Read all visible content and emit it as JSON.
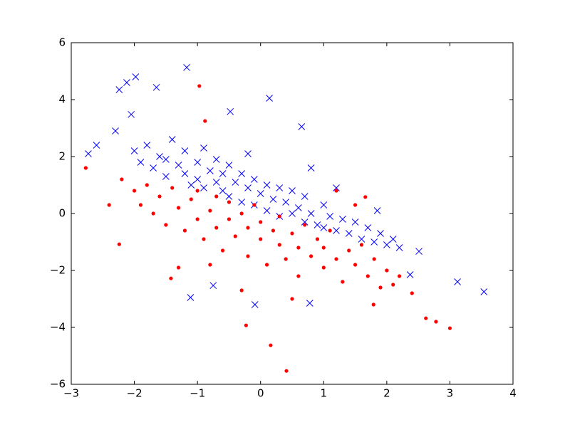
{
  "chart_data": {
    "type": "scatter",
    "xlim": [
      -3,
      4
    ],
    "ylim": [
      -6,
      6
    ],
    "xticks": [
      {
        "value": -3,
        "label": "−3"
      },
      {
        "value": -2,
        "label": "−2"
      },
      {
        "value": -1,
        "label": "−1"
      },
      0,
      1,
      2,
      3,
      4
    ],
    "yticks": [
      {
        "value": -6,
        "label": "−6"
      },
      {
        "value": -4,
        "label": "−4"
      },
      {
        "value": -2,
        "label": "−2"
      },
      0,
      2,
      4,
      6
    ],
    "series": [
      {
        "color": "#0000ff",
        "marker": "x",
        "x": [
          -2.0,
          -1.9,
          -1.8,
          -1.7,
          -1.6,
          -1.5,
          -1.5,
          -1.4,
          -1.3,
          -1.2,
          -1.2,
          -1.1,
          -1.0,
          -1.0,
          -0.9,
          -0.9,
          -0.8,
          -0.7,
          -0.7,
          -0.6,
          -0.6,
          -0.5,
          -0.5,
          -0.4,
          -0.3,
          -0.3,
          -0.2,
          -0.1,
          -0.1,
          0.0,
          0.1,
          0.1,
          0.2,
          0.3,
          0.3,
          0.4,
          0.5,
          0.5,
          0.6,
          0.7,
          0.7,
          0.8,
          0.9,
          1.0,
          1.0,
          1.1,
          1.2,
          1.3,
          1.4,
          1.5,
          1.6,
          1.7,
          1.8,
          1.9,
          2.0,
          2.1,
          2.2,
          0.8,
          1.2,
          -0.2,
          -2.24,
          -1.98,
          -2.12,
          -1.17,
          -1.65,
          0.14,
          -0.48,
          -2.05,
          0.65,
          3.12,
          3.54,
          -1.11,
          -2.73,
          -2.6,
          -2.3,
          2.51,
          2.37,
          0.78,
          -0.09,
          -0.75,
          1.85
        ],
        "y": [
          2.2,
          1.8,
          2.4,
          1.6,
          2.0,
          1.9,
          1.3,
          2.6,
          1.7,
          1.4,
          2.2,
          1.0,
          1.8,
          1.2,
          2.3,
          0.9,
          1.5,
          1.1,
          1.9,
          0.8,
          1.4,
          1.7,
          0.6,
          1.1,
          1.4,
          0.4,
          0.9,
          1.2,
          0.3,
          0.7,
          1.0,
          0.1,
          0.5,
          0.9,
          -0.1,
          0.4,
          0.0,
          0.8,
          0.2,
          -0.3,
          0.6,
          0.0,
          -0.4,
          0.3,
          -0.5,
          -0.1,
          -0.6,
          -0.2,
          -0.7,
          -0.3,
          -0.9,
          -0.5,
          -1.0,
          -0.7,
          -1.1,
          -0.9,
          -1.2,
          1.6,
          0.9,
          2.1,
          4.35,
          4.8,
          4.6,
          5.13,
          4.43,
          4.05,
          3.58,
          3.48,
          3.05,
          -2.4,
          -2.75,
          -2.95,
          2.1,
          2.4,
          2.9,
          -1.33,
          -2.15,
          -3.15,
          -3.2,
          -2.53,
          0.1
        ]
      },
      {
        "color": "#ff0000",
        "marker": "o",
        "x": [
          -2.2,
          -2.0,
          -1.9,
          -1.8,
          -1.7,
          -1.6,
          -1.5,
          -1.4,
          -1.3,
          -1.2,
          -1.1,
          -1.0,
          -1.0,
          -0.9,
          -0.8,
          -0.7,
          -0.7,
          -0.6,
          -0.5,
          -0.5,
          -0.4,
          -0.3,
          -0.2,
          -0.2,
          -0.1,
          0.0,
          0.0,
          0.1,
          0.2,
          0.3,
          0.3,
          0.4,
          0.5,
          0.6,
          0.6,
          0.7,
          0.8,
          0.9,
          1.0,
          1.0,
          1.1,
          1.2,
          1.3,
          1.4,
          1.5,
          1.6,
          1.7,
          1.8,
          1.9,
          2.0,
          2.1,
          2.2,
          2.4,
          -0.8,
          -0.3,
          0.5,
          1.2,
          1.5,
          -2.4,
          -1.3,
          -0.97,
          0.41,
          0.16,
          3.0,
          -2.77,
          -2.24,
          -0.23,
          2.78,
          2.62,
          -0.88,
          1.79,
          -1.42,
          1.66
        ],
        "y": [
          1.2,
          0.8,
          0.3,
          1.0,
          0.0,
          0.6,
          -0.4,
          0.9,
          0.2,
          -0.6,
          0.5,
          -0.2,
          0.8,
          -0.9,
          0.1,
          -0.5,
          0.6,
          -1.3,
          -0.2,
          0.4,
          -0.8,
          0.0,
          -1.5,
          -0.5,
          0.3,
          -0.9,
          -0.3,
          -1.8,
          -0.6,
          -1.1,
          -0.1,
          -1.6,
          -0.7,
          -1.2,
          -2.2,
          -0.4,
          -1.5,
          -0.9,
          -1.9,
          -1.2,
          -0.6,
          -1.6,
          -2.4,
          -1.3,
          -1.8,
          -1.1,
          -2.2,
          -1.6,
          -2.6,
          -2.0,
          -2.5,
          -2.2,
          -2.8,
          -1.8,
          -2.7,
          -3.0,
          0.8,
          0.3,
          0.3,
          -1.9,
          4.48,
          -5.53,
          -4.63,
          -4.03,
          1.6,
          -1.08,
          -3.93,
          -3.8,
          -3.68,
          3.25,
          -3.2,
          -2.28,
          0.58
        ]
      }
    ]
  }
}
